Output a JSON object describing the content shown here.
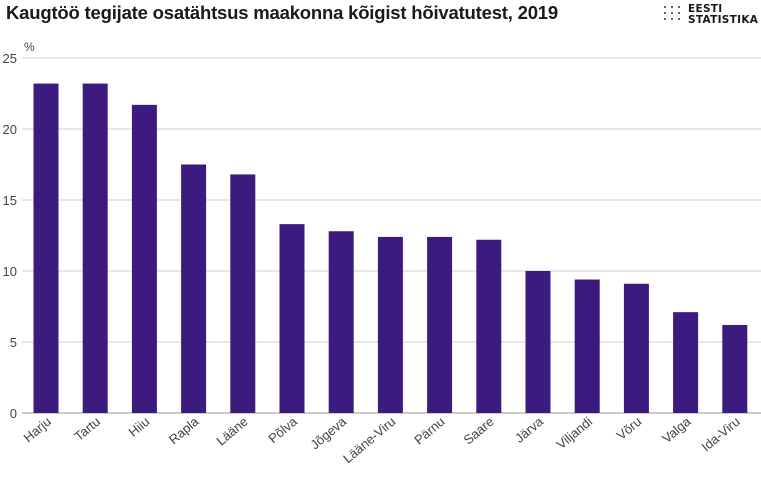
{
  "header": {
    "title": "Kaugtöö tegijate osatähtsus maakonna kõigist hõivatutest, 2019",
    "logo_line1": "EESTI",
    "logo_line2": "STATISTIKA"
  },
  "chart_data": {
    "type": "bar",
    "title": "Kaugtöö tegijate osatähtsus maakonna kõigist hõivatutest, 2019",
    "ylabel": "%",
    "xlabel": "",
    "ylim": [
      0,
      25
    ],
    "yticks": [
      0,
      5,
      10,
      15,
      20,
      25
    ],
    "grid": true,
    "bar_color": "#3d1a7e",
    "categories": [
      "Harju",
      "Tartu",
      "Hiiu",
      "Rapla",
      "Lääne",
      "Põlva",
      "Jõgeva",
      "Lääne-Viru",
      "Pärnu",
      "Saare",
      "Järva",
      "Viljandi",
      "Võru",
      "Valga",
      "Ida-Viru"
    ],
    "values": [
      23.2,
      23.2,
      21.7,
      17.5,
      16.8,
      13.3,
      12.8,
      12.4,
      12.4,
      12.2,
      10.0,
      9.4,
      9.1,
      7.1,
      6.2
    ]
  }
}
